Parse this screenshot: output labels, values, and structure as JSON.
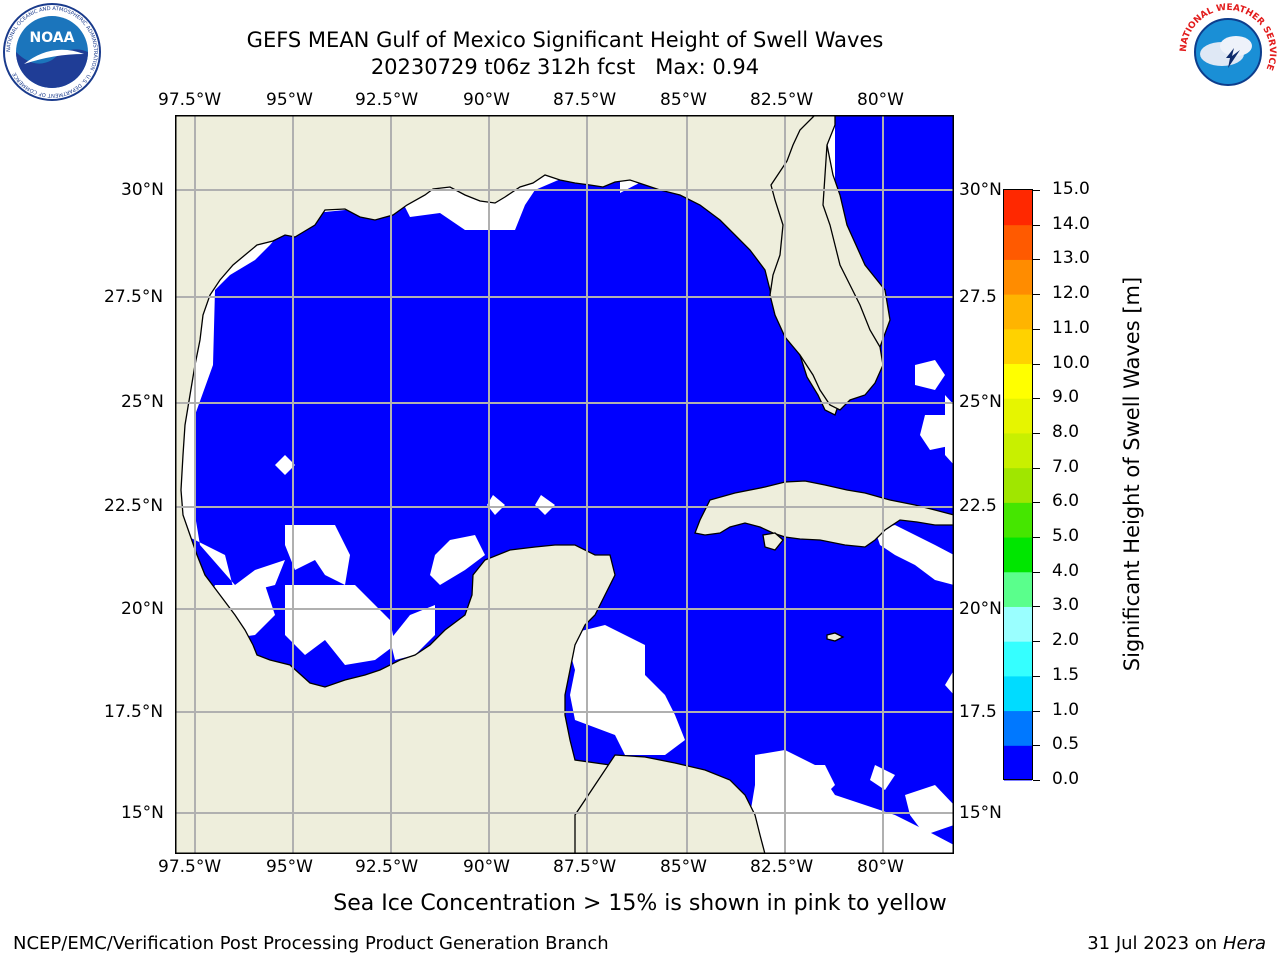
{
  "header": {
    "title_line1": "GEFS MEAN Gulf of Mexico Significant Height of Swell Waves",
    "title_line2": "20230729 t06z 312h fcst   Max: 0.94"
  },
  "logos": {
    "noaa_text": "NOAA",
    "noaa_ring": "NATIONAL OCEANIC AND ATMOSPHERIC ADMINISTRATION · U.S. DEPARTMENT OF COMMERCE",
    "nws_ring": "NATIONAL WEATHER SERVICE"
  },
  "map": {
    "lon_labels": [
      "97.5°W",
      "95°W",
      "92.5°W",
      "90°W",
      "87.5°W",
      "85°W",
      "82.5°W",
      "80°W"
    ],
    "lat_labels_left": [
      "30°N",
      "27.5°N",
      "25°N",
      "22.5°N",
      "20°N",
      "17.5°N",
      "15°N"
    ],
    "lat_labels_right": [
      "30°N",
      "27.5",
      "25°N",
      "22.5",
      "20°N",
      "17.5",
      "15°N"
    ],
    "lon_range": [
      -98,
      -78.2
    ],
    "lat_range": [
      14,
      31.6
    ],
    "land_color": "#eeeedc",
    "ocean_color": "#0000ff",
    "pacific_color": "#0078ff",
    "grid_color": "#b0b0b0"
  },
  "colorbar": {
    "label": "Significant Height of Swell Waves [m]",
    "ticks": [
      "0.0",
      "0.5",
      "1.0",
      "1.5",
      "2.0",
      "3.0",
      "4.0",
      "5.0",
      "6.0",
      "7.0",
      "8.0",
      "9.0",
      "10.0",
      "11.0",
      "12.0",
      "13.0",
      "14.0",
      "15.0"
    ],
    "colors": [
      "#0000ff",
      "#0078ff",
      "#00dcff",
      "#35ffff",
      "#9affff",
      "#5aff8c",
      "#00e600",
      "#45e600",
      "#a0e600",
      "#c8f000",
      "#e6f500",
      "#ffff00",
      "#ffd200",
      "#ffb400",
      "#ff8c00",
      "#ff5a00",
      "#ff2800"
    ]
  },
  "sea_ice_note": "Sea Ice Concentration > 15% is shown in pink to yellow",
  "footer": {
    "left": "NCEP/EMC/Verification Post Processing Product Generation Branch",
    "right_date": "31 Jul 2023 on ",
    "right_host": "Hera"
  }
}
